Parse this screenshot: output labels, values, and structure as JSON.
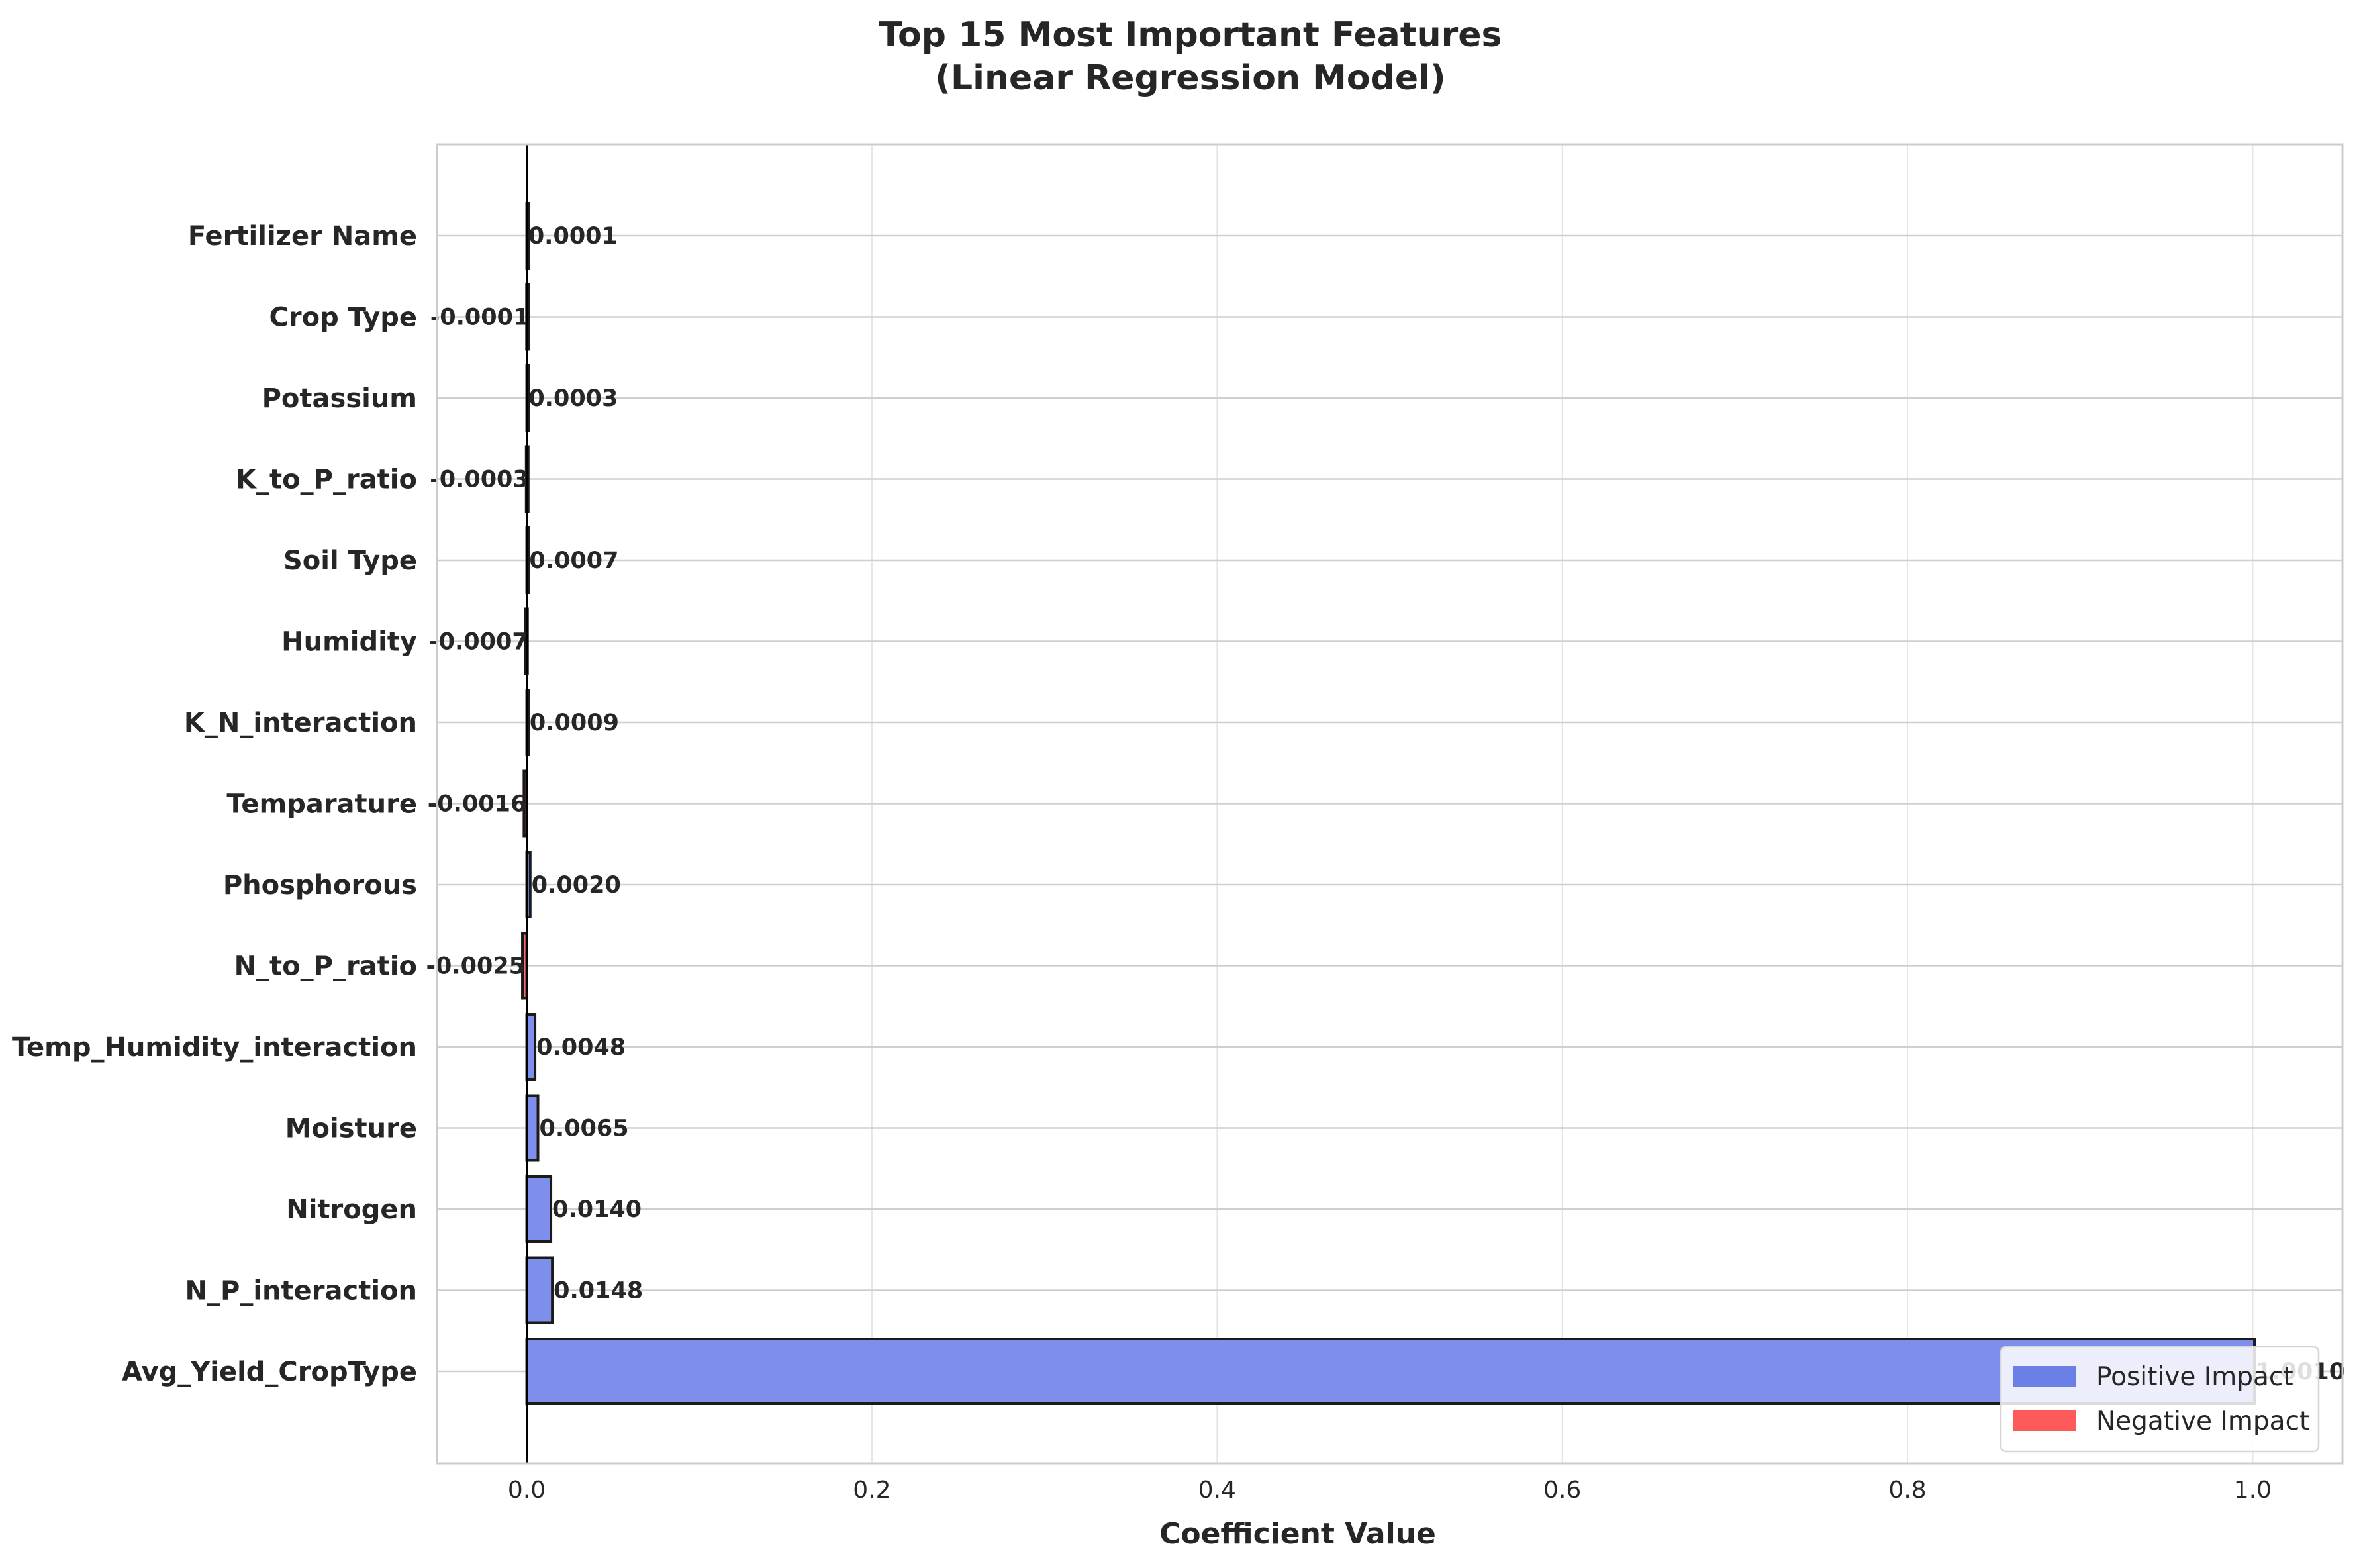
{
  "chart_data": {
    "type": "bar",
    "orientation": "horizontal",
    "title_lines": [
      "Top 15 Most Important Features",
      "(Linear Regression Model)"
    ],
    "xlabel": "Coefficient Value",
    "ylabel": "",
    "xlim": [
      -0.052,
      1.052
    ],
    "xticks": [
      0.0,
      0.2,
      0.4,
      0.6,
      0.8,
      1.0
    ],
    "xtick_labels": [
      "0.0",
      "0.2",
      "0.4",
      "0.6",
      "0.8",
      "1.0"
    ],
    "grid": true,
    "legend_position": "lower-right",
    "legend": [
      {
        "label": "Positive Impact",
        "color": "#6b80e6"
      },
      {
        "label": "Negative Impact",
        "color": "#ff5a5a"
      }
    ],
    "colors": {
      "positive": "#7d8fea",
      "negative": "#ff6b6b",
      "edge": "#1a1a1a"
    },
    "categories": [
      "Fertilizer Name",
      "Crop Type",
      "Potassium",
      "K_to_P_ratio",
      "Soil Type",
      "Humidity",
      "K_N_interaction",
      "Temparature",
      "Phosphorous",
      "N_to_P_ratio",
      "Temp_Humidity_interaction",
      "Moisture",
      "Nitrogen",
      "N_P_interaction",
      "Avg_Yield_CropType"
    ],
    "values": [
      0.0001,
      -0.0001,
      0.0003,
      -0.0003,
      0.0007,
      -0.0007,
      0.0009,
      -0.0016,
      0.002,
      -0.0025,
      0.0048,
      0.0065,
      0.014,
      0.0148,
      1.001
    ],
    "value_labels": [
      "0.0001",
      "-0.0001",
      "0.0003",
      "-0.0003",
      "0.0007",
      "-0.0007",
      "0.0009",
      "-0.0016",
      "0.0020",
      "-0.0025",
      "0.0048",
      "0.0065",
      "0.0140",
      "0.0148",
      "1.0010"
    ]
  }
}
